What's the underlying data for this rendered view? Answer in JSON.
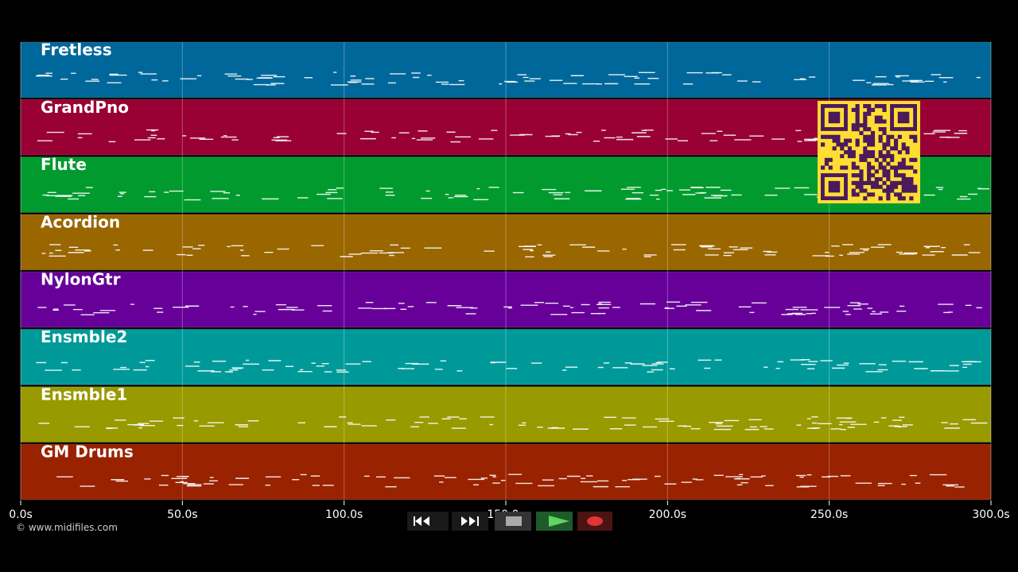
{
  "tracks": [
    {
      "name": "Fretless",
      "color": "#00679a"
    },
    {
      "name": "GrandPno",
      "color": "#990033"
    },
    {
      "name": "Flute",
      "color": "#009a2e"
    },
    {
      "name": "Acordion",
      "color": "#996600"
    },
    {
      "name": "NylonGtr",
      "color": "#660099"
    },
    {
      "name": "Ensmble2",
      "color": "#009999"
    },
    {
      "name": "Ensmble1",
      "color": "#999900"
    },
    {
      "name": "GM Drums",
      "color": "#992200"
    }
  ],
  "time_axis": {
    "range": [
      0,
      300
    ],
    "ticks": [
      {
        "value": 0,
        "label": "0.0s"
      },
      {
        "value": 50,
        "label": "50.0s"
      },
      {
        "value": 100,
        "label": "100.0s"
      },
      {
        "value": 150,
        "label": "150.0s"
      },
      {
        "value": 200,
        "label": "200.0s"
      },
      {
        "value": 250,
        "label": "250.0s"
      },
      {
        "value": 300,
        "label": "300.0s"
      }
    ]
  },
  "footer": "© www.midifiles.com"
}
